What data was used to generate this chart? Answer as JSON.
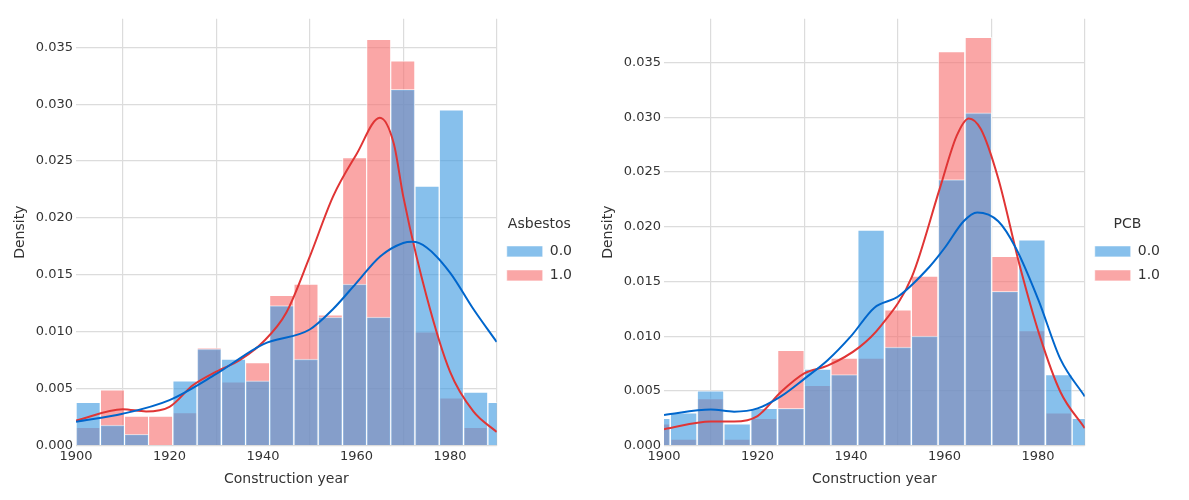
{
  "chart_data": [
    {
      "type": "histogram",
      "xlabel": "Construction year",
      "ylabel": "Density",
      "legend_title": "Asbestos",
      "legend": "right",
      "grid": true,
      "xlim": [
        1900,
        1990
      ],
      "xticks": [
        1900,
        1920,
        1940,
        1960,
        1980
      ],
      "ylim": [
        0,
        0.0375
      ],
      "yticks": [
        {
          "value": 0,
          "label": "0.000"
        },
        {
          "value": 0.005,
          "label": "0.005"
        },
        {
          "value": 0.01,
          "label": "0.010"
        },
        {
          "value": 0.015,
          "label": "0.015"
        },
        {
          "value": 0.02,
          "label": "0.020"
        },
        {
          "value": 0.025,
          "label": "0.025"
        },
        {
          "value": 0.03,
          "label": "0.030"
        },
        {
          "value": 0.035,
          "label": "0.035"
        }
      ],
      "series": [
        {
          "name": "0.0",
          "color": "#3d9ae0",
          "bins": [
            1900,
            1905.2,
            1910.4,
            1915.5,
            1920.7,
            1925.9,
            1931.1,
            1936.3,
            1941.4,
            1946.6,
            1951.8,
            1957,
            1962.2,
            1967.3,
            1972.5,
            1977.7,
            1982.9,
            1988.1,
            1993.3
          ],
          "values": [
            0.0038,
            0.0018,
            0.001,
            0,
            0.0057,
            0.0085,
            0.0076,
            0.0057,
            0.0123,
            0.0076,
            0.0113,
            0.0142,
            0.0113,
            0.0313,
            0.0228,
            0.0295,
            0.0047,
            0.0038
          ]
        },
        {
          "name": "1.0",
          "color": "#f76f6f",
          "bins": [
            1900,
            1905.2,
            1910.4,
            1915.5,
            1920.7,
            1925.9,
            1931.1,
            1936.3,
            1941.4,
            1946.6,
            1951.8,
            1957,
            1962.2,
            1967.3,
            1972.5,
            1977.7,
            1982.9,
            1988.1,
            1993.3
          ],
          "values": [
            0.0016,
            0.0049,
            0.0026,
            0.0026,
            0.0029,
            0.0086,
            0.0056,
            0.0073,
            0.0132,
            0.0142,
            0.0115,
            0.0253,
            0.0357,
            0.0338,
            0.01,
            0.0042,
            0.0016,
            0
          ]
        },
        {
          "type": "line",
          "color": "#0066cc",
          "x": [
            1900,
            1910,
            1920,
            1930,
            1940,
            1950,
            1955,
            1960,
            1965,
            1970,
            1972,
            1975,
            1980,
            1985,
            1990
          ],
          "values": [
            0.0021,
            0.0028,
            0.004,
            0.0063,
            0.0089,
            0.0102,
            0.012,
            0.0143,
            0.0166,
            0.0178,
            0.0179,
            0.0174,
            0.0152,
            0.012,
            0.0091
          ]
        },
        {
          "type": "line",
          "color": "#e03535",
          "x": [
            1900,
            1910,
            1915,
            1920,
            1925,
            1930,
            1935,
            1940,
            1945,
            1950,
            1955,
            1960,
            1965,
            1968,
            1970,
            1975,
            1980,
            1985,
            1990
          ],
          "values": [
            0.0022,
            0.0032,
            0.003,
            0.0034,
            0.0053,
            0.0065,
            0.0075,
            0.0091,
            0.0117,
            0.0166,
            0.0219,
            0.0256,
            0.0288,
            0.0265,
            0.0219,
            0.0131,
            0.0065,
            0.003,
            0.0012
          ]
        }
      ]
    },
    {
      "type": "histogram",
      "xlabel": "Construction year",
      "ylabel": "Density",
      "legend_title": "PCB",
      "legend": "right",
      "grid": true,
      "xlim": [
        1900,
        1990
      ],
      "xticks": [
        1900,
        1920,
        1940,
        1960,
        1980
      ],
      "ylim": [
        0,
        0.039
      ],
      "yticks": [
        {
          "value": 0,
          "label": "0.000"
        },
        {
          "value": 0.005,
          "label": "0.005"
        },
        {
          "value": 0.01,
          "label": "0.010"
        },
        {
          "value": 0.015,
          "label": "0.015"
        },
        {
          "value": 0.02,
          "label": "0.020"
        },
        {
          "value": 0.025,
          "label": "0.025"
        },
        {
          "value": 0.03,
          "label": "0.030"
        },
        {
          "value": 0.035,
          "label": "0.035"
        }
      ],
      "series": [
        {
          "name": "0.0",
          "color": "#3d9ae0",
          "bins": [
            1895.6,
            1901.3,
            1907.1,
            1912.8,
            1918.5,
            1924.3,
            1930,
            1935.7,
            1941.4,
            1947.2,
            1952.9,
            1958.6,
            1964.4,
            1970.1,
            1975.8,
            1981.6,
            1987.3,
            1993
          ],
          "values": [
            0.0025,
            0.003,
            0.005,
            0.002,
            0.0034,
            0.0034,
            0.007,
            0.0065,
            0.0197,
            0.009,
            0.01,
            0.0243,
            0.0304,
            0.0141,
            0.0188,
            0.0065,
            0.0025
          ]
        },
        {
          "name": "1.0",
          "color": "#f76f6f",
          "bins": [
            1895.6,
            1901.3,
            1907.1,
            1912.8,
            1918.5,
            1924.3,
            1930,
            1935.7,
            1941.4,
            1947.2,
            1952.9,
            1958.6,
            1964.4,
            1970.1,
            1975.8,
            1981.6,
            1987.3,
            1993
          ],
          "values": [
            0.002,
            0.0006,
            0.0043,
            0.0006,
            0.0025,
            0.0087,
            0.0055,
            0.008,
            0.008,
            0.0124,
            0.0155,
            0.036,
            0.0373,
            0.0173,
            0.0105,
            0.003,
            0
          ]
        },
        {
          "type": "line",
          "color": "#0066cc",
          "x": [
            1900,
            1910,
            1915,
            1920,
            1925,
            1930,
            1935,
            1940,
            1945,
            1950,
            1956.7,
            1960.1,
            1964.1,
            1967,
            1971.5,
            1975.2,
            1980.1,
            1984.8,
            1990
          ],
          "values": [
            0.0028,
            0.0033,
            0.0031,
            0.0034,
            0.0045,
            0.0061,
            0.0078,
            0.01,
            0.0126,
            0.0136,
            0.0163,
            0.0181,
            0.0205,
            0.0213,
            0.0205,
            0.0181,
            0.0133,
            0.0079,
            0.0045
          ]
        },
        {
          "type": "line",
          "color": "#e03535",
          "x": [
            1900,
            1910,
            1915,
            1920,
            1925,
            1930,
            1935,
            1941.8,
            1946.3,
            1953,
            1959,
            1962.6,
            1965.2,
            1967.8,
            1971.5,
            1976,
            1980.4,
            1984.8,
            1990
          ],
          "values": [
            0.0015,
            0.0022,
            0.0022,
            0.0027,
            0.0049,
            0.0066,
            0.0073,
            0.009,
            0.0109,
            0.0154,
            0.0235,
            0.0283,
            0.0299,
            0.0289,
            0.0244,
            0.0166,
            0.01,
            0.0049,
            0.0016
          ]
        }
      ]
    }
  ]
}
